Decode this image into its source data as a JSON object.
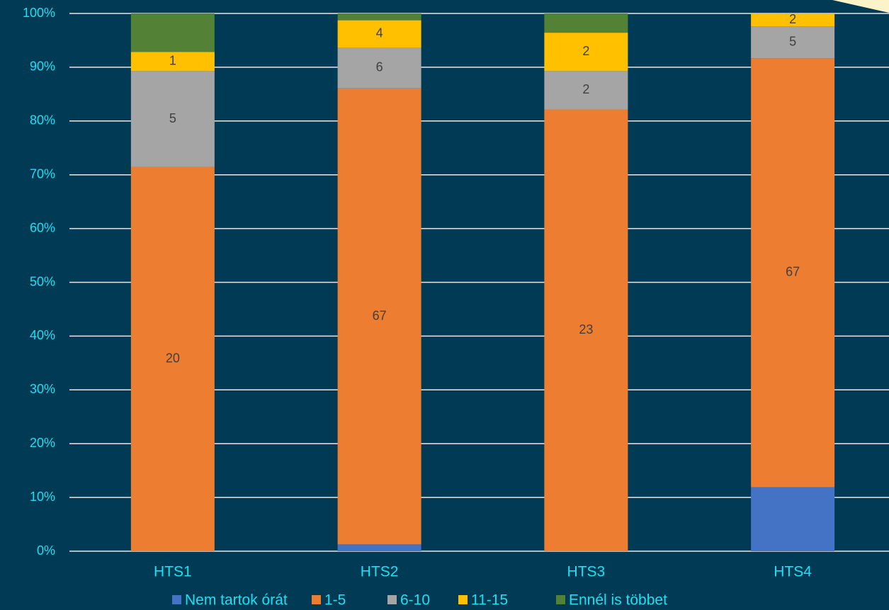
{
  "chart_data": {
    "type": "bar",
    "stacking": "percent",
    "categories": [
      "HTS1",
      "HTS2",
      "HTS3",
      "HTS4"
    ],
    "series": [
      {
        "name": "Nem tartok órát",
        "color": "#4472c4",
        "values": [
          0,
          1,
          0,
          10
        ],
        "show_labels": false
      },
      {
        "name": "1-5",
        "color": "#ed7d31",
        "values": [
          20,
          67,
          23,
          67
        ],
        "show_labels": true
      },
      {
        "name": "6-10",
        "color": "#a5a5a5",
        "values": [
          5,
          6,
          2,
          5
        ],
        "show_labels": true
      },
      {
        "name": "11-15",
        "color": "#ffc000",
        "values": [
          1,
          4,
          2,
          2
        ],
        "show_labels": true
      },
      {
        "name": "Ennél is többet",
        "color": "#538135",
        "values": [
          2,
          1,
          1,
          0
        ],
        "show_labels": false
      }
    ],
    "ylim": [
      0,
      100
    ],
    "yticks": [
      {
        "value": 0,
        "label": "0%"
      },
      {
        "value": 10,
        "label": "10%"
      },
      {
        "value": 20,
        "label": "20%"
      },
      {
        "value": 30,
        "label": "30%"
      },
      {
        "value": 40,
        "label": "40%"
      },
      {
        "value": 50,
        "label": "50%"
      },
      {
        "value": 60,
        "label": "60%"
      },
      {
        "value": 70,
        "label": "70%"
      },
      {
        "value": 80,
        "label": "80%"
      },
      {
        "value": 90,
        "label": "90%"
      },
      {
        "value": 100,
        "label": "100%"
      }
    ],
    "grid": true,
    "legend": "bottom"
  }
}
